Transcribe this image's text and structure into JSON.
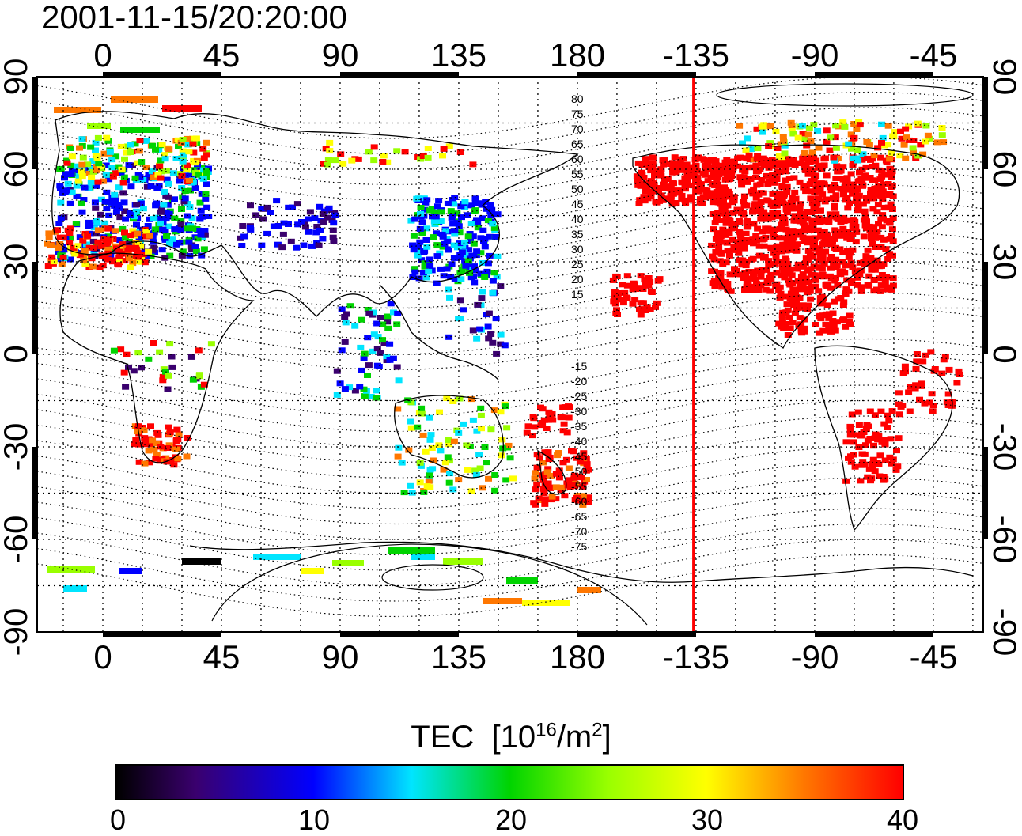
{
  "timestamp": "2001-11-15/20:20:00",
  "map": {
    "lon_ticks_top": [
      "0",
      "45",
      "90",
      "135",
      "180",
      "-135",
      "-90",
      "-45"
    ],
    "lon_ticks_bottom": [
      "0",
      "45",
      "90",
      "135",
      "180",
      "-135",
      "-90",
      "-45"
    ],
    "lat_ticks_left": [
      "90",
      "60",
      "30",
      "0",
      "-30",
      "-60",
      "-90"
    ],
    "lat_ticks_right": [
      "90",
      "60",
      "30",
      "0",
      "-30",
      "-60",
      "-90"
    ],
    "contour_labels_north": [
      "80",
      "75",
      "70",
      "65",
      "60",
      "55",
      "50",
      "45",
      "40",
      "35",
      "30",
      "25",
      "20",
      "15"
    ],
    "contour_labels_south": [
      "-15",
      "-20",
      "-25",
      "-30",
      "-35",
      "-40",
      "-45",
      "-50",
      "-55",
      "-60",
      "-65",
      "-70",
      "-75"
    ],
    "terminator_line_lon": -136,
    "terminator_color": "#ff0000"
  },
  "colorbar": {
    "title": "TEC",
    "unit_prefix": "[10",
    "unit_exp1": "16",
    "unit_mid": "/m",
    "unit_exp2": "2",
    "unit_suffix": "]",
    "ticks": [
      "0",
      "10",
      "20",
      "30",
      "40"
    ],
    "colors": [
      "#000000",
      "#3a006e",
      "#0000ff",
      "#00e5ff",
      "#00d400",
      "#99ff00",
      "#ffff00",
      "#ff7700",
      "#ff0000"
    ]
  }
}
